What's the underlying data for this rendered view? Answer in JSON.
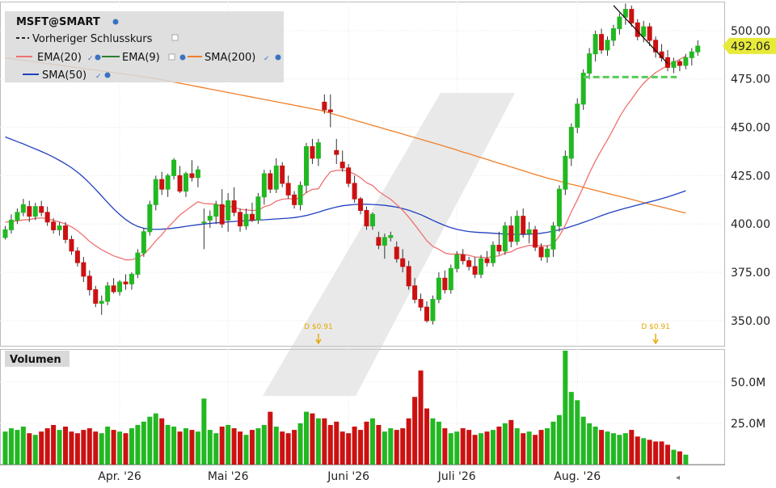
{
  "legend": {
    "symbol": "MSFT@SMART",
    "prev_close_label": "Vorheriger Schlusskurs",
    "ema20_label": "EMA(20)",
    "ema9_label": "EMA(9)",
    "sma200_label": "SMA(200)",
    "sma50_label": "SMA(50)"
  },
  "volume_label": "Volumen",
  "last_price_label": "492.06",
  "dividends": [
    {
      "label": "D $0.91",
      "day": 52
    },
    {
      "label": "D $0.91",
      "day": 108
    }
  ],
  "colors": {
    "up": "#22b822",
    "down": "#cc1111",
    "ema20": "#f07070",
    "ema9": "#2e7d32",
    "sma200": "#f07f2a",
    "sma50": "#2040c0",
    "support": "#55cc55",
    "last_price_bg": "#e8ea3a"
  },
  "chart_data": {
    "type": "candlestick",
    "x_tick_labels": [
      "Apr. '26",
      "Mai '26",
      "Juni '26",
      "Juli '26",
      "Aug. '26"
    ],
    "x_tick_days": [
      19,
      37,
      57,
      75,
      95
    ],
    "price_ticks": [
      350,
      375,
      400,
      425,
      450,
      475,
      500
    ],
    "price_tick_labels": [
      "350.00",
      "375.00",
      "400.00",
      "425.00",
      "450.00",
      "475.00",
      "500.00"
    ],
    "price_range": [
      337,
      515
    ],
    "volume_ticks": [
      25000000,
      50000000
    ],
    "volume_tick_labels": [
      "25.0M",
      "50.0M"
    ],
    "volume_range": [
      0,
      70000000
    ],
    "last_price": 492.06,
    "support_level": 476,
    "trendline": [
      [
        101,
        513
      ],
      [
        110,
        483
      ]
    ],
    "ohlc": [
      [
        393,
        399,
        392,
        397
      ],
      [
        397,
        405,
        395,
        402
      ],
      [
        402,
        408,
        400,
        406
      ],
      [
        406,
        413,
        404,
        410
      ],
      [
        409,
        412,
        401,
        404
      ],
      [
        404,
        411,
        402,
        409
      ],
      [
        409,
        412,
        404,
        406
      ],
      [
        406,
        409,
        399,
        401
      ],
      [
        401,
        403,
        395,
        397
      ],
      [
        397,
        401,
        394,
        399
      ],
      [
        399,
        401,
        390,
        392
      ],
      [
        392,
        394,
        384,
        386
      ],
      [
        386,
        388,
        378,
        380
      ],
      [
        380,
        383,
        370,
        373
      ],
      [
        373,
        376,
        363,
        366
      ],
      [
        366,
        368,
        357,
        359
      ],
      [
        359,
        363,
        353,
        360
      ],
      [
        360,
        370,
        358,
        368
      ],
      [
        368,
        372,
        364,
        365
      ],
      [
        365,
        371,
        363,
        370
      ],
      [
        370,
        374,
        366,
        369
      ],
      [
        369,
        375,
        366,
        374
      ],
      [
        374,
        387,
        372,
        385
      ],
      [
        385,
        398,
        383,
        396
      ],
      [
        396,
        412,
        394,
        410
      ],
      [
        410,
        425,
        407,
        423
      ],
      [
        423,
        427,
        415,
        418
      ],
      [
        418,
        426,
        414,
        425
      ],
      [
        425,
        434,
        423,
        433
      ],
      [
        425,
        430,
        416,
        417
      ],
      [
        417,
        427,
        414,
        426
      ],
      [
        426,
        433,
        422,
        424
      ],
      [
        424,
        430,
        419,
        428
      ],
      [
        401,
        408,
        387,
        401
      ],
      [
        402,
        407,
        398,
        404
      ],
      [
        404,
        412,
        400,
        410
      ],
      [
        410,
        418,
        398,
        400
      ],
      [
        402,
        416,
        396,
        412
      ],
      [
        412,
        419,
        404,
        406
      ],
      [
        406,
        408,
        396,
        399
      ],
      [
        399,
        408,
        397,
        405
      ],
      [
        405,
        411,
        401,
        402
      ],
      [
        402,
        416,
        400,
        414
      ],
      [
        414,
        428,
        410,
        426
      ],
      [
        426,
        428,
        416,
        418
      ],
      [
        418,
        434,
        416,
        430
      ],
      [
        430,
        432,
        419,
        421
      ],
      [
        421,
        425,
        413,
        415
      ],
      [
        415,
        417,
        408,
        410
      ],
      [
        410,
        422,
        407,
        420
      ],
      [
        420,
        442,
        416,
        440
      ],
      [
        440,
        444,
        431,
        434
      ],
      [
        434,
        444,
        430,
        442
      ],
      [
        463,
        467,
        457,
        459
      ],
      [
        459,
        467,
        450,
        458
      ],
      [
        438,
        444,
        431,
        436
      ],
      [
        432,
        438,
        427,
        429
      ],
      [
        429,
        431,
        419,
        421
      ],
      [
        421,
        425,
        411,
        413
      ],
      [
        413,
        414,
        405,
        407
      ],
      [
        407,
        409,
        397,
        399
      ],
      [
        399,
        406,
        397,
        405
      ],
      [
        393,
        396,
        387,
        389
      ],
      [
        389,
        395,
        382,
        393
      ],
      [
        393,
        396,
        391,
        394
      ],
      [
        388,
        391,
        380,
        382
      ],
      [
        382,
        387,
        375,
        378
      ],
      [
        378,
        381,
        366,
        368
      ],
      [
        368,
        372,
        359,
        361
      ],
      [
        361,
        364,
        355,
        357
      ],
      [
        357,
        360,
        349,
        350
      ],
      [
        350,
        363,
        348,
        361
      ],
      [
        361,
        375,
        359,
        372
      ],
      [
        372,
        376,
        364,
        366
      ],
      [
        366,
        379,
        364,
        377
      ],
      [
        377,
        386,
        375,
        384
      ],
      [
        384,
        387,
        379,
        381
      ],
      [
        381,
        383,
        376,
        378
      ],
      [
        378,
        383,
        372,
        374
      ],
      [
        374,
        384,
        372,
        382
      ],
      [
        382,
        386,
        378,
        380
      ],
      [
        380,
        391,
        378,
        389
      ],
      [
        389,
        396,
        384,
        386
      ],
      [
        386,
        401,
        384,
        399
      ],
      [
        399,
        404,
        388,
        391
      ],
      [
        391,
        407,
        389,
        404
      ],
      [
        404,
        408,
        393,
        395
      ],
      [
        395,
        401,
        390,
        397
      ],
      [
        397,
        399,
        386,
        388
      ],
      [
        388,
        390,
        381,
        383
      ],
      [
        383,
        389,
        380,
        387
      ],
      [
        387,
        401,
        383,
        399
      ],
      [
        399,
        420,
        396,
        418
      ],
      [
        418,
        438,
        415,
        435
      ],
      [
        434,
        452,
        430,
        450
      ],
      [
        450,
        465,
        447,
        462
      ],
      [
        462,
        480,
        459,
        478
      ],
      [
        478,
        491,
        475,
        488
      ],
      [
        488,
        500,
        484,
        498
      ],
      [
        498,
        501,
        488,
        490
      ],
      [
        490,
        497,
        487,
        495
      ],
      [
        495,
        503,
        492,
        501
      ],
      [
        501,
        509,
        498,
        507
      ],
      [
        507,
        514,
        503,
        511
      ],
      [
        511,
        513,
        502,
        504
      ],
      [
        504,
        506,
        495,
        497
      ],
      [
        497,
        505,
        494,
        502
      ],
      [
        502,
        504,
        492,
        495
      ],
      [
        495,
        497,
        486,
        489
      ],
      [
        489,
        493,
        484,
        486
      ],
      [
        486,
        490,
        479,
        481
      ],
      [
        481,
        486,
        478,
        484
      ],
      [
        484,
        485,
        479,
        482
      ],
      [
        482,
        488,
        480,
        486
      ],
      [
        486,
        491,
        482,
        489
      ],
      [
        489,
        495,
        487,
        492
      ]
    ],
    "volume": [
      20000000,
      22000000,
      21000000,
      23000000,
      19000000,
      18000000,
      20000000,
      22000000,
      24000000,
      21000000,
      23000000,
      20000000,
      19000000,
      21000000,
      22000000,
      20000000,
      19000000,
      23000000,
      21000000,
      20000000,
      19000000,
      22000000,
      24000000,
      26000000,
      29000000,
      31000000,
      28000000,
      24000000,
      23000000,
      20000000,
      22000000,
      21000000,
      20000000,
      40000000,
      21000000,
      19000000,
      23000000,
      24000000,
      22000000,
      20000000,
      18000000,
      21000000,
      22000000,
      24000000,
      32000000,
      23000000,
      20000000,
      19000000,
      21000000,
      25000000,
      32000000,
      31000000,
      28000000,
      28000000,
      24000000,
      26000000,
      20000000,
      19000000,
      23000000,
      21000000,
      26000000,
      28000000,
      24000000,
      20000000,
      22000000,
      21000000,
      22000000,
      28000000,
      41000000,
      57000000,
      34000000,
      28000000,
      26000000,
      22000000,
      19000000,
      20000000,
      22000000,
      21000000,
      18000000,
      19000000,
      20000000,
      21000000,
      23000000,
      25000000,
      27000000,
      22000000,
      19000000,
      20000000,
      18000000,
      21000000,
      22000000,
      26000000,
      30000000,
      69000000,
      44000000,
      39000000,
      29000000,
      25000000,
      23000000,
      21000000,
      20000000,
      19000000,
      18000000,
      19000000,
      21000000,
      17000000,
      16000000,
      15000000,
      14000000,
      14000000,
      12000000,
      9000000,
      8000000,
      6000000
    ],
    "ema20": [
      401,
      401.2,
      401.6,
      402.1,
      402.3,
      402.9,
      403.2,
      402.7,
      401.9,
      401.1,
      400,
      398.5,
      396.5,
      393.9,
      391,
      388.7,
      386.7,
      385.1,
      383.5,
      382.5,
      381.4,
      381.5,
      382.5,
      384.4,
      387.5,
      391.3,
      394.5,
      398.2,
      401.4,
      404.7,
      407,
      409.3,
      411.5,
      410.6,
      410.4,
      410.3,
      408.9,
      409.2,
      408.7,
      407.6,
      407.3,
      407,
      407.1,
      408.9,
      409.8,
      411.8,
      412.8,
      413.1,
      412.8,
      413.5,
      416.3,
      417.9,
      418.2,
      423.1,
      427,
      427.7,
      427.9,
      427.2,
      425.8,
      423.9,
      421.3,
      419.9,
      416.9,
      414.7,
      412.8,
      410,
      407.1,
      403.5,
      399.6,
      395.5,
      391.3,
      388.4,
      386.9,
      385,
      384.4,
      384.5,
      384.3,
      383.8,
      382.9,
      382.8,
      382.6,
      383.2,
      383.5,
      385,
      385.6,
      387.3,
      388.1,
      388.9,
      388.9,
      388.8,
      388.6,
      389.6,
      393.7,
      399.4,
      406.3,
      412.5,
      419.2,
      426.3,
      432.6,
      438.3,
      443.5,
      449.3,
      455.3,
      460.4,
      464.5,
      469,
      472.8,
      475.7,
      478.3,
      480.2,
      482,
      483.7,
      485.1,
      486.9
    ],
    "ema9": [
      401,
      401.2,
      401.6,
      402.1,
      402.3,
      402.9,
      403.2,
      402.7,
      401.9,
      401.1,
      400,
      398.5,
      396.5,
      393.9,
      391,
      388.7,
      386.7,
      385.1,
      383.5,
      382.5,
      381.4,
      381.5,
      382.5,
      384.4,
      387.5,
      391.3,
      394.5,
      398.2,
      401.4,
      404.7,
      407,
      409.3,
      411.5,
      410.6,
      410.4,
      410.3,
      408.9,
      409.2,
      408.7,
      407.6,
      407.3,
      407,
      407.1,
      408.9,
      409.8,
      411.8,
      412.8,
      413.1,
      412.8,
      413.5,
      416.3,
      417.9,
      418.2,
      423.1,
      427,
      427.7,
      427.9,
      427.2,
      425.8,
      423.9,
      421.3,
      419.9,
      416.9,
      414.7,
      412.8,
      410,
      407.1,
      403.5,
      399.6,
      395.5,
      391.3,
      388.4,
      386.9,
      385,
      384.4,
      384.5,
      384.3,
      383.8,
      382.9,
      382.8,
      382.6,
      383.2,
      383.5,
      385,
      385.6,
      387.3,
      388.1,
      388.9,
      388.9,
      388.8,
      388.6,
      389.6,
      393.7,
      399.4,
      406.3,
      412.5,
      419.2,
      426.3,
      432.6,
      438.3,
      443.5,
      449.3,
      455.3,
      460.4,
      464.5,
      469,
      472.8,
      475.7,
      478.3,
      480.2,
      482,
      483.7,
      485.1,
      486.9
    ],
    "sma200": [
      486,
      485.6,
      485.1,
      484.7,
      484.3,
      483.8,
      483.4,
      483,
      482.5,
      482.1,
      481.7,
      481.3,
      480.8,
      480.4,
      480,
      479.6,
      479.1,
      478.7,
      478.3,
      477.9,
      477.4,
      477,
      476.6,
      476.1,
      475.7,
      475.2,
      474.6,
      474,
      473.4,
      472.8,
      472.2,
      471.6,
      471,
      470.4,
      469.8,
      469.2,
      468.6,
      468,
      467.4,
      466.8,
      466.2,
      465.6,
      465,
      464.4,
      463.8,
      463.2,
      462.6,
      462,
      461.4,
      460.8,
      460.2,
      459.6,
      459,
      458.2,
      457.3,
      456.4,
      455.5,
      454.6,
      453.7,
      452.8,
      451.9,
      451,
      450.1,
      449.2,
      448.3,
      447.4,
      446.5,
      445.6,
      444.7,
      443.8,
      442.9,
      442,
      441.1,
      440.1,
      439.2,
      438.2,
      437.2,
      436.3,
      435.3,
      434.3,
      433.4,
      432.4,
      431.4,
      430.5,
      429.5,
      428.5,
      427.6,
      426.6,
      425.6,
      424.7,
      423.7,
      422.9,
      422.1,
      421.3,
      420.5,
      419.8,
      419,
      418.2,
      417.4,
      416.6,
      415.8,
      415,
      414.3,
      413.5,
      412.7,
      411.9,
      411.1,
      410.3,
      409.5,
      408.8,
      408,
      407.2,
      406.4,
      405.6
    ],
    "sma50": [
      445,
      443.8,
      442.6,
      441.4,
      440.1,
      438.8,
      437.5,
      436.1,
      434.6,
      432.9,
      431.1,
      429.1,
      426.8,
      424.1,
      421.1,
      417.9,
      414.5,
      411.1,
      407.8,
      404.9,
      402.3,
      400.2,
      398.7,
      397.8,
      397.3,
      397.2,
      397.3,
      397.5,
      397.9,
      398.3,
      398.8,
      399.2,
      399.6,
      400,
      400.3,
      400.6,
      400.8,
      401.1,
      401.3,
      401.5,
      401.7,
      401.9,
      402.1,
      402.2,
      402.4,
      402.6,
      402.8,
      403,
      403.3,
      403.8,
      404.4,
      405.2,
      406.1,
      407.1,
      408,
      408.8,
      409.4,
      409.8,
      410.1,
      410.2,
      410.2,
      410.1,
      409.9,
      409.6,
      409.2,
      408.7,
      408,
      407.1,
      406,
      404.8,
      403.4,
      401.9,
      400.5,
      399.2,
      398.1,
      397.2,
      396.6,
      396.1,
      395.8,
      395.6,
      395.4,
      395.2,
      395,
      394.8,
      394.7,
      394.6,
      394.6,
      394.7,
      394.9,
      395.2,
      395.7,
      396.3,
      397,
      397.8,
      398.7,
      399.7,
      400.8,
      401.9,
      403.1,
      404.3,
      405.4,
      406.4,
      407.3,
      408.2,
      409,
      409.8,
      410.6,
      411.4,
      412.2,
      413.1,
      414,
      415,
      416.1,
      417.2
    ]
  }
}
